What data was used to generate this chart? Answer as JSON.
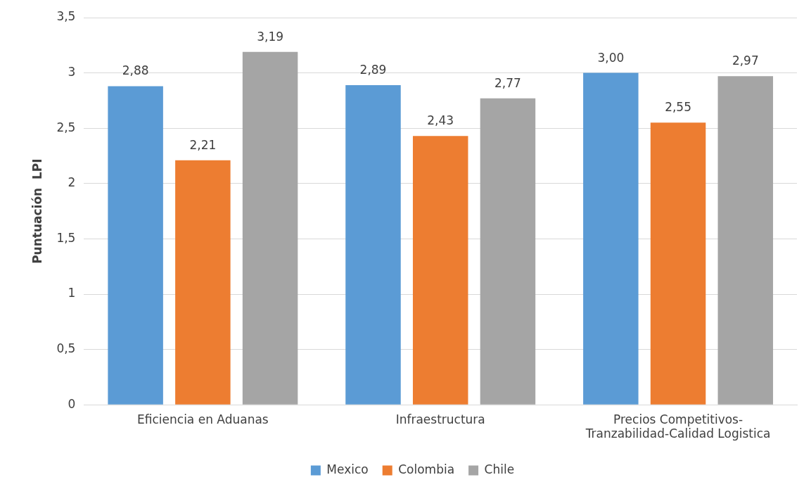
{
  "chart_data": {
    "type": "bar",
    "ylabel": "Puntuación  LPI",
    "categories": [
      "Eficiencia en Aduanas",
      "Infraestructura",
      "Precios Competitivos-Tranzabilidad-Calidad Logistica"
    ],
    "series": [
      {
        "name": "Mexico",
        "color": "#5b9bd5",
        "values": [
          2.88,
          2.89,
          3.0
        ],
        "value_labels": [
          "2,88",
          "2,89",
          "3,00"
        ]
      },
      {
        "name": "Colombia",
        "color": "#ed7d31",
        "values": [
          2.21,
          2.43,
          2.55
        ],
        "value_labels": [
          "2,21",
          "2,43",
          "2,55"
        ]
      },
      {
        "name": "Chile",
        "color": "#a5a5a5",
        "values": [
          3.19,
          2.77,
          2.97
        ],
        "value_labels": [
          "3,19",
          "2,77",
          "2,97"
        ]
      }
    ],
    "ylim": [
      0,
      3.5
    ],
    "yticks": [
      0,
      {
        "value": 0.5,
        "label": "0,5"
      },
      1,
      {
        "value": 1.5,
        "label": "1,5"
      },
      2,
      {
        "value": 2.5,
        "label": "2,5"
      },
      3,
      {
        "value": 3.5,
        "label": "3,5"
      }
    ],
    "grid": "y",
    "legend": "bottom"
  }
}
